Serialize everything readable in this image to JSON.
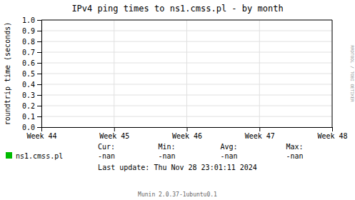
{
  "chart_data": {
    "type": "line",
    "title": "IPv4 ping times to ns1.cmss.pl - by month",
    "ylabel": "roundtrip time (seconds)",
    "categories": [
      "Week 44",
      "Week 45",
      "Week 46",
      "Week 47",
      "Week 48"
    ],
    "series": [
      {
        "name": "ns1.cmss.pl",
        "color": "#00bb00",
        "values": [
          null,
          null,
          null,
          null,
          null
        ]
      }
    ],
    "ylim": [
      0.0,
      1.0
    ],
    "yticks": [
      {
        "value": 0.0,
        "label": "0.0"
      },
      {
        "value": 0.1,
        "label": "0.1"
      },
      {
        "value": 0.2,
        "label": "0.2"
      },
      {
        "value": 0.3,
        "label": "0.3"
      },
      {
        "value": 0.4,
        "label": "0.4"
      },
      {
        "value": 0.5,
        "label": "0.5"
      },
      {
        "value": 0.6,
        "label": "0.6"
      },
      {
        "value": 0.7,
        "label": "0.7"
      },
      {
        "value": 0.8,
        "label": "0.8"
      },
      {
        "value": 0.9,
        "label": "0.9"
      },
      {
        "value": 1.0,
        "label": "1.0"
      }
    ],
    "grid": true,
    "legend": "bottom",
    "annotations": [
      "Cur:",
      "-nan",
      "Min:",
      "-nan",
      "Avg:",
      "-nan",
      "Max:",
      "-nan",
      "Last update: Thu Nov 28 23:01:11 2024",
      "Munin 2.0.37-1ubuntu0.1",
      "RRDTOOL / TOBI OETIKER"
    ]
  }
}
